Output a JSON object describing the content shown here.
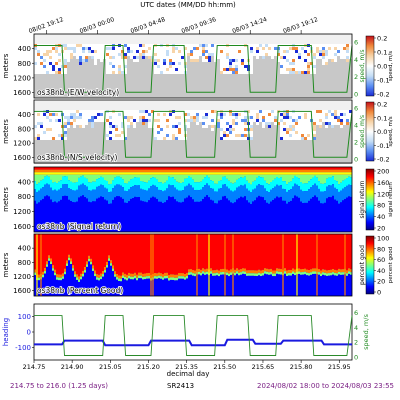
{
  "figure": {
    "top_axis_title": "UTC dates (MM/DD hh:mm)",
    "top_ticks": [
      "08/02 19:12",
      "08/03 00:00",
      "08/03 04:48",
      "08/03 09:36",
      "08/03 14:24",
      "08/03 19:12"
    ],
    "bottom_axis_title": "decimal day",
    "bottom_ticks": [
      "214.75",
      "214.90",
      "215.05",
      "215.20",
      "215.35",
      "215.50",
      "215.65",
      "215.80",
      "215.95"
    ],
    "footer": {
      "left": "214.75 to 216.0 (1.25 days)",
      "center": "SR2413",
      "right": "2024/08/02 18:00 to 2024/08/03 23:55"
    }
  },
  "chart_data": [
    {
      "type": "heatmap",
      "title": "os38nb (E/W velocity)",
      "ylabel": "meters",
      "ylabel_right": "speed, m/s",
      "yticks": [
        "400",
        "800",
        "1200",
        "1600"
      ],
      "right_yticks": [
        "0",
        "2",
        "4",
        "6"
      ],
      "colorbar_ticks": [
        "0.2",
        "0.1",
        "0.0",
        "-0.1",
        "-0.2"
      ],
      "colormap": "diverging",
      "colors": [
        "#1a2bd6",
        "#5b8ff2",
        "#c4ddf5",
        "#ffffff",
        "#f7d4a8",
        "#f08a3c",
        "#c4111a"
      ],
      "clim": [
        -0.2,
        0.2
      ],
      "xlim": [
        214.75,
        216.0
      ],
      "ylim": [
        1750,
        0
      ],
      "overlay_line": "ship speed (green)"
    },
    {
      "type": "heatmap",
      "title": "os38nb (N/S velocity)",
      "ylabel": "meters",
      "ylabel_right": "speed, m/s",
      "yticks": [
        "400",
        "800",
        "1200",
        "1600"
      ],
      "right_yticks": [
        "0",
        "2",
        "4",
        "6"
      ],
      "colorbar_ticks": [
        "0.2",
        "0.1",
        "0.0",
        "-0.1",
        "-0.2"
      ],
      "colormap": "diverging",
      "colors": [
        "#1a2bd6",
        "#5b8ff2",
        "#c4ddf5",
        "#ffffff",
        "#f7d4a8",
        "#f08a3c",
        "#c4111a"
      ],
      "clim": [
        -0.2,
        0.2
      ],
      "xlim": [
        214.75,
        216.0
      ],
      "ylim": [
        1750,
        0
      ],
      "overlay_line": "ship speed (green)"
    },
    {
      "type": "heatmap",
      "title": "os38nb (Signal return)",
      "ylabel": "meters",
      "ylabel_right": "signal return",
      "yticks": [
        "400",
        "800",
        "1200",
        "1600"
      ],
      "colorbar_ticks": [
        "200",
        "160",
        "120",
        "80",
        "40",
        "20"
      ],
      "colormap": "jet",
      "colors": [
        "#00007f",
        "#0000ff",
        "#007fff",
        "#00ffff",
        "#7fff7f",
        "#ffff00",
        "#ff7f00",
        "#ff0000",
        "#7f0000"
      ],
      "clim": [
        20,
        200
      ],
      "xlim": [
        214.75,
        216.0
      ],
      "ylim": [
        1750,
        0
      ]
    },
    {
      "type": "heatmap",
      "title": "os38nb (Percent Good)",
      "ylabel": "meters",
      "ylabel_right": "percent good",
      "yticks": [
        "400",
        "800",
        "1200",
        "1600"
      ],
      "colorbar_ticks": [
        "100",
        "80",
        "60",
        "40",
        "20",
        "0"
      ],
      "colormap": "jet",
      "colors": [
        "#00007f",
        "#0000ff",
        "#007fff",
        "#00ffff",
        "#7fff7f",
        "#ffff00",
        "#ff7f00",
        "#ff0000",
        "#7f0000"
      ],
      "clim": [
        0,
        100
      ],
      "xlim": [
        214.75,
        216.0
      ],
      "ylim": [
        1750,
        0
      ]
    },
    {
      "type": "line",
      "ylabel": "heading",
      "ylabel_right": "speed, m/s",
      "yticks": [
        "100",
        "0",
        "-100"
      ],
      "right_yticks": [
        "6",
        "4",
        "2",
        "0"
      ],
      "xlim": [
        214.75,
        216.0
      ],
      "series": [
        {
          "color": "#1a1adf",
          "x": [
            214.75,
            214.86,
            214.87,
            215.02,
            215.03,
            215.2,
            215.21,
            215.36,
            215.37,
            215.5,
            215.51,
            215.61,
            215.62,
            215.72,
            215.73,
            215.88,
            215.89,
            216.0
          ],
          "y": [
            -80,
            -80,
            -55,
            -55,
            -85,
            -85,
            -55,
            -55,
            -85,
            -85,
            -50,
            -50,
            -75,
            -75,
            -55,
            -55,
            -80,
            -80
          ]
        },
        {
          "color": "#2a8a2a",
          "x": [
            214.75,
            214.86,
            214.87,
            215.02,
            215.03,
            215.1,
            215.11,
            215.21,
            215.22,
            215.34,
            215.35,
            215.46,
            215.47,
            215.59,
            215.6,
            215.7,
            215.71,
            215.84,
            215.85,
            215.98,
            216.0
          ],
          "y": [
            5.6,
            5.6,
            0.2,
            0.2,
            5.6,
            5.6,
            0.2,
            0.2,
            5.6,
            5.6,
            0.2,
            0.2,
            5.6,
            5.6,
            0.2,
            0.2,
            5.6,
            5.6,
            0.2,
            0.2,
            5.6
          ]
        }
      ]
    }
  ]
}
